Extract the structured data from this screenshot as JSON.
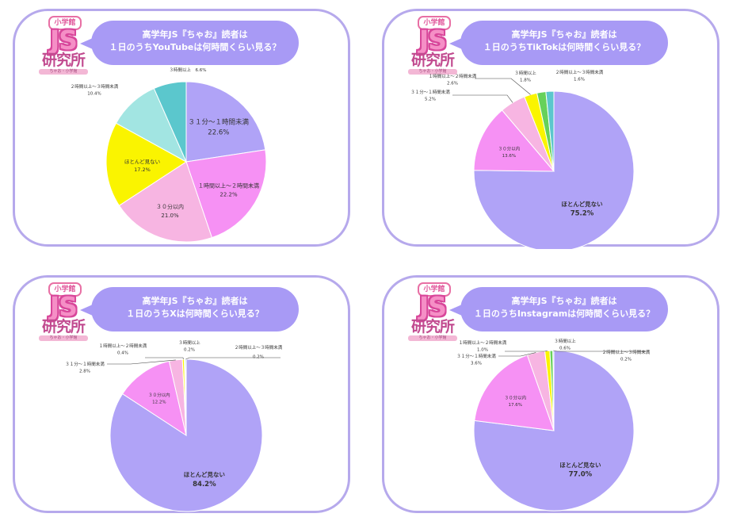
{
  "logo": {
    "top": "小学館",
    "main": "JS",
    "sub": "研究所",
    "footer": "ちゃお・小学館"
  },
  "colors": {
    "border": "#b6a9ec",
    "bubble": "#a89af5",
    "slices": [
      "#b0a3f7",
      "#f691f4",
      "#f7b5e2",
      "#faf400",
      "#a2e5e2",
      "#5bc7cd",
      "#66d15a",
      "#88d4d6"
    ]
  },
  "chart_data": [
    {
      "type": "pie",
      "title_line1": "高学年JS『ちゃお』読者は",
      "title_line2": "１日のうちYouTubeは何時間くらい見る？",
      "slices": [
        {
          "label": "３１分～１時間未満",
          "value": 22.6,
          "value_label": "22.6%",
          "color": "#b0a3f7"
        },
        {
          "label": "１時間以上～２時間未満",
          "value": 22.2,
          "value_label": "22.2%",
          "color": "#f691f4"
        },
        {
          "label": "３０分以内",
          "value": 21.0,
          "value_label": "21.0%",
          "color": "#f7b5e2"
        },
        {
          "label": "ほとんど見ない",
          "value": 17.2,
          "value_label": "17.2%",
          "color": "#faf400"
        },
        {
          "label": "２時間以上～３時間未満",
          "value": 10.4,
          "value_label": "10.4%",
          "color": "#a2e5e2"
        },
        {
          "label": "３時間以上",
          "value": 6.6,
          "value_label": "6.6%",
          "color": "#5bc7cd"
        }
      ]
    },
    {
      "type": "pie",
      "title_line1": "高学年JS『ちゃお』読者は",
      "title_line2": "１日のうちTikTokは何時間くらい見る？",
      "slices": [
        {
          "label": "ほとんど見ない",
          "value": 75.2,
          "value_label": "75.2%",
          "color": "#b0a3f7"
        },
        {
          "label": "３０分以内",
          "value": 13.6,
          "value_label": "13.6%",
          "color": "#f691f4"
        },
        {
          "label": "３１分～１時間未満",
          "value": 5.2,
          "value_label": "5.2%",
          "color": "#f7b5e2"
        },
        {
          "label": "１時間以上～２時間未満",
          "value": 2.6,
          "value_label": "2.6%",
          "color": "#faf400"
        },
        {
          "label": "３時間以上",
          "value": 1.8,
          "value_label": "1.8%",
          "color": "#66d15a"
        },
        {
          "label": "２時間以上～３時間未満",
          "value": 1.6,
          "value_label": "1.6%",
          "color": "#5bc7cd"
        }
      ]
    },
    {
      "type": "pie",
      "title_line1": "高学年JS『ちゃお』読者は",
      "title_line2": "１日のうちXは何時間くらい見る？",
      "slices": [
        {
          "label": "ほとんど見ない",
          "value": 84.2,
          "value_label": "84.2%",
          "color": "#b0a3f7"
        },
        {
          "label": "３０分以内",
          "value": 12.2,
          "value_label": "12.2%",
          "color": "#f691f4"
        },
        {
          "label": "３１分～１時間未満",
          "value": 2.8,
          "value_label": "2.8%",
          "color": "#f7b5e2"
        },
        {
          "label": "１時間以上～２時間未満",
          "value": 0.4,
          "value_label": "0.4%",
          "color": "#faf400"
        },
        {
          "label": "３時間以上",
          "value": 0.2,
          "value_label": "0.2%",
          "color": "#66d15a"
        },
        {
          "label": "２時間以上～３時間未満",
          "value": 0.2,
          "value_label": "0.2%",
          "color": "#5bc7cd"
        }
      ]
    },
    {
      "type": "pie",
      "title_line1": "高学年JS『ちゃお』読者は",
      "title_line2": "１日のうちInstagramは何時間くらい見る？",
      "slices": [
        {
          "label": "ほとんど見ない",
          "value": 77.0,
          "value_label": "77.0%",
          "color": "#b0a3f7"
        },
        {
          "label": "３０分以内",
          "value": 17.6,
          "value_label": "17.6%",
          "color": "#f691f4"
        },
        {
          "label": "３１分～１時間未満",
          "value": 3.6,
          "value_label": "3.6%",
          "color": "#f7b5e2"
        },
        {
          "label": "１時間以上～２時間未満",
          "value": 1.0,
          "value_label": "1.0%",
          "color": "#faf400"
        },
        {
          "label": "３時間以上",
          "value": 0.6,
          "value_label": "0.6%",
          "color": "#66d15a"
        },
        {
          "label": "２時間以上～３時間未満",
          "value": 0.2,
          "value_label": "0.2%",
          "color": "#5bc7cd"
        }
      ]
    }
  ]
}
